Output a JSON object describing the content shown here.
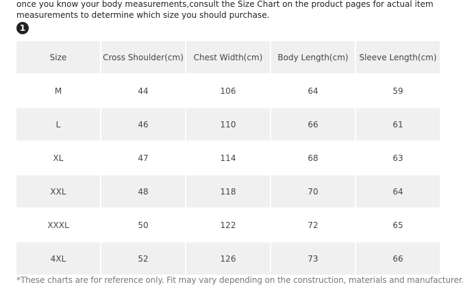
{
  "intro": {
    "lines": [
      "once you know your body measurements,consult the Size Chart on the product pages for actual item",
      "measurements to determine which size you should purchase."
    ]
  },
  "badge": "1",
  "table": {
    "header": [
      "Size",
      "Cross Shoulder(cm)",
      "Chest Width(cm)",
      "Body Length(cm)",
      "Sleeve Length(cm)"
    ],
    "rows": [
      [
        "M",
        44,
        106,
        64,
        59
      ],
      [
        "L",
        46,
        110,
        66,
        61
      ],
      [
        "XL",
        47,
        114,
        68,
        63
      ],
      [
        "XXL",
        48,
        118,
        70,
        64
      ],
      [
        "XXXL",
        50,
        122,
        72,
        65
      ],
      [
        "4XL",
        52,
        126,
        73,
        66
      ]
    ]
  },
  "footnote": "*These charts are for reference only. Fit may vary depending on the construction, materials and manufacturer."
}
